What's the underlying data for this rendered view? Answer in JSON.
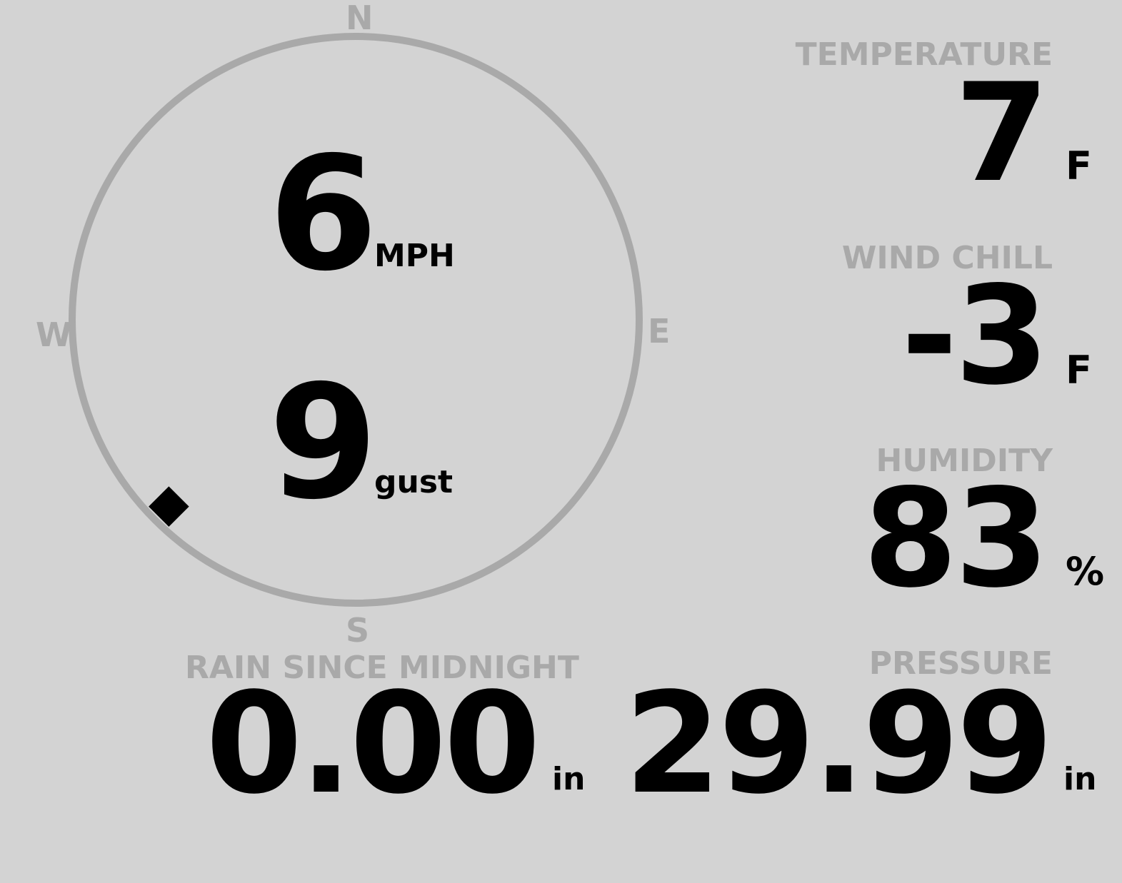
{
  "wind": {
    "compass": {
      "north": "N",
      "east": "E",
      "south": "S",
      "west": "W"
    },
    "speed": "6",
    "speed_unit": "MPH",
    "gust": "9",
    "gust_unit": "gust",
    "direction_degrees": 225,
    "colors": {
      "ring": "#a9a9a9",
      "pointer": "#000000"
    }
  },
  "temperature": {
    "label": "TEMPERATURE",
    "value": "7",
    "unit": "F"
  },
  "wind_chill": {
    "label": "WIND CHILL",
    "value": "-3",
    "unit": "F"
  },
  "humidity": {
    "label": "HUMIDITY",
    "value": "83",
    "unit": "%"
  },
  "rain": {
    "label": "RAIN SINCE MIDNIGHT",
    "value": "0.00",
    "unit": "in"
  },
  "pressure": {
    "label": "PRESSURE",
    "value": "29.99",
    "unit": "in"
  },
  "colors": {
    "background": "#d3d3d3",
    "label": "#a9a9a9",
    "value": "#000000"
  }
}
